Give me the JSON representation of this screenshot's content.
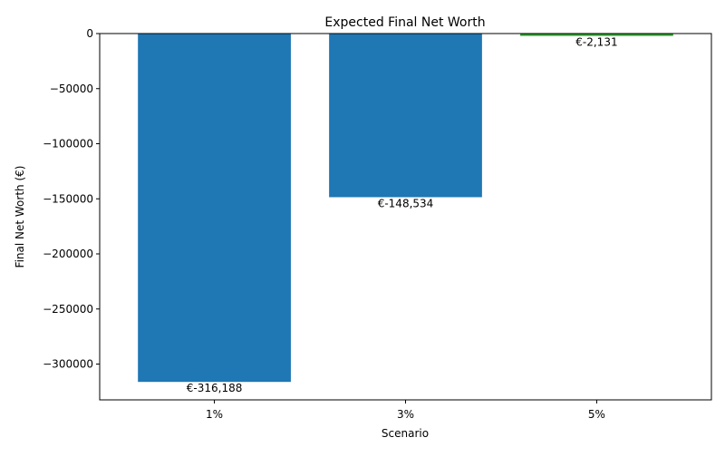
{
  "chart_data": {
    "type": "bar",
    "title": "Expected Final Net Worth",
    "xlabel": "Scenario",
    "ylabel": "Final Net Worth (€)",
    "categories": [
      "1%",
      "3%",
      "5%"
    ],
    "values": [
      -316188,
      -148534,
      -2131
    ],
    "data_labels": [
      "€-316,188",
      "€-148,534",
      "€-2,131"
    ],
    "bar_colors": [
      "#1f77b4",
      "#1f77b4",
      "#2ca02c"
    ],
    "ylim": [
      -332499,
      0
    ],
    "yticks": [
      0,
      -50000,
      -100000,
      -150000,
      -200000,
      -250000,
      -300000
    ],
    "ytick_labels": [
      "0",
      "−50000",
      "−100000",
      "−150000",
      "−200000",
      "−250000",
      "−300000"
    ],
    "grid": false
  }
}
